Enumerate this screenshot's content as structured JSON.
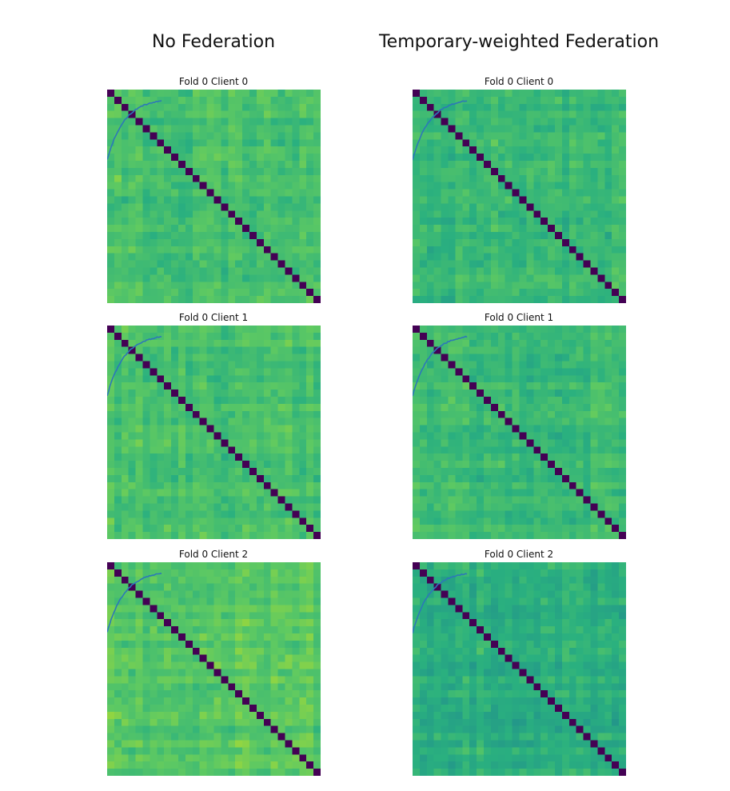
{
  "column_titles": {
    "left": "No Federation",
    "right": "Temporary-weighted Federation"
  },
  "colors": {
    "diagonal": "#440154",
    "curve": "#2c78b8",
    "colormap": "viridis"
  },
  "chart_data": [
    {
      "type": "heatmap",
      "title": "Fold 0 Client 0",
      "column": "No Federation",
      "matrix_size": 30,
      "diagonal_value": 0.0,
      "off_diagonal_level": 0.7,
      "off_diagonal_spread": 0.07,
      "overlay_curve": "rising saturating line in top-left corner",
      "xlabel": "",
      "ylabel": ""
    },
    {
      "type": "heatmap",
      "title": "Fold 0 Client 1",
      "column": "No Federation",
      "matrix_size": 30,
      "diagonal_value": 0.0,
      "off_diagonal_level": 0.7,
      "off_diagonal_spread": 0.07,
      "overlay_curve": "rising saturating line in top-left corner",
      "xlabel": "",
      "ylabel": ""
    },
    {
      "type": "heatmap",
      "title": "Fold 0 Client 2",
      "column": "No Federation",
      "matrix_size": 30,
      "diagonal_value": 0.0,
      "off_diagonal_level": 0.74,
      "off_diagonal_spread": 0.07,
      "overlay_curve": "rising saturating line in top-left corner",
      "xlabel": "",
      "ylabel": ""
    },
    {
      "type": "heatmap",
      "title": "Fold 0 Client 0",
      "column": "Temporary-weighted Federation",
      "matrix_size": 30,
      "diagonal_value": 0.0,
      "off_diagonal_level": 0.67,
      "off_diagonal_spread": 0.07,
      "overlay_curve": "rising saturating line in top-left corner",
      "xlabel": "",
      "ylabel": ""
    },
    {
      "type": "heatmap",
      "title": "Fold 0 Client 1",
      "column": "Temporary-weighted Federation",
      "matrix_size": 30,
      "diagonal_value": 0.0,
      "off_diagonal_level": 0.68,
      "off_diagonal_spread": 0.07,
      "overlay_curve": "rising saturating line in top-left corner",
      "xlabel": "",
      "ylabel": ""
    },
    {
      "type": "heatmap",
      "title": "Fold 0 Client 2",
      "column": "Temporary-weighted Federation",
      "matrix_size": 30,
      "diagonal_value": 0.0,
      "off_diagonal_level": 0.62,
      "off_diagonal_spread": 0.07,
      "overlay_curve": "rising saturating line in top-left corner",
      "xlabel": "",
      "ylabel": ""
    }
  ]
}
